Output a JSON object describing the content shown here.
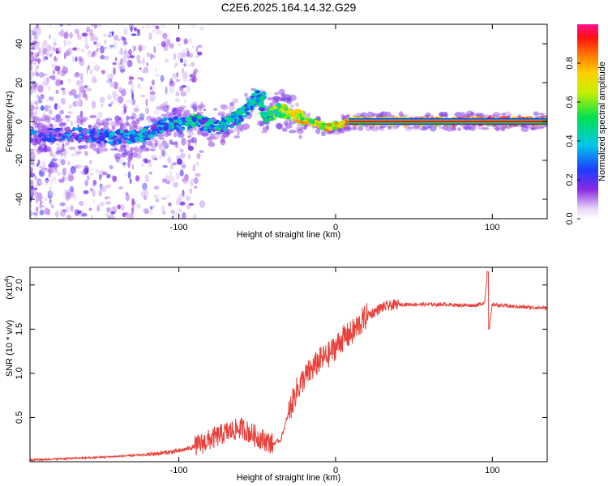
{
  "title": "C2E6.2025.164.14.32.G29",
  "chart_data": [
    {
      "type": "heatmap",
      "xlabel": "Height of straight line (km)",
      "ylabel": "Frequency (Hz)",
      "xlim": [
        -195,
        135
      ],
      "ylim": [
        -50,
        50
      ],
      "xticks": [
        -100,
        0,
        100
      ],
      "yticks": [
        -40,
        -20,
        0,
        20,
        40
      ],
      "colorbar": {
        "label": "Normalized spectral amplitude",
        "range": [
          0,
          1
        ],
        "ticks": [
          "0.0",
          "0.2",
          "0.4",
          "0.6",
          "0.8"
        ],
        "tick_values": [
          0.0,
          0.2,
          0.4,
          0.6,
          0.8
        ]
      },
      "ridge": [
        {
          "x": -190,
          "y": -7,
          "a": 0.35
        },
        {
          "x": -160,
          "y": -7,
          "a": 0.4
        },
        {
          "x": -140,
          "y": -8,
          "a": 0.45
        },
        {
          "x": -125,
          "y": -8,
          "a": 0.45
        },
        {
          "x": -110,
          "y": -2,
          "a": 0.5
        },
        {
          "x": -90,
          "y": 0,
          "a": 0.55
        },
        {
          "x": -75,
          "y": -3,
          "a": 0.45
        },
        {
          "x": -60,
          "y": 3,
          "a": 0.5
        },
        {
          "x": -50,
          "y": 13,
          "a": 0.45
        },
        {
          "x": -45,
          "y": 2,
          "a": 0.55
        },
        {
          "x": -35,
          "y": 6,
          "a": 0.75
        },
        {
          "x": -20,
          "y": 1,
          "a": 0.85
        },
        {
          "x": -5,
          "y": -3,
          "a": 0.85
        },
        {
          "x": 10,
          "y": 0,
          "a": 0.92
        },
        {
          "x": 135,
          "y": 0,
          "a": 0.95
        }
      ]
    },
    {
      "type": "line",
      "xlabel": "Height of straight line (km)",
      "ylabel": "SNR (10 * v/v)",
      "y_multiplier": "(x10",
      "y_multiplier_exp": "4",
      "xlim": [
        -195,
        135
      ],
      "ylim": [
        0,
        2.2
      ],
      "xticks": [
        -100,
        0,
        100
      ],
      "yticks": [
        "0.5",
        "1.0",
        "1.5",
        "2.0"
      ],
      "ytick_values": [
        0.5,
        1.0,
        1.5,
        2.0
      ],
      "color": "#e8403a",
      "series": [
        {
          "name": "SNR",
          "x": [
            -195,
            -150,
            -120,
            -100,
            -90,
            -80,
            -70,
            -60,
            -50,
            -40,
            -35,
            -30,
            -25,
            -20,
            -15,
            -10,
            -5,
            0,
            5,
            10,
            15,
            20,
            25,
            30,
            40,
            50,
            60,
            70,
            80,
            90,
            95,
            97,
            98,
            100,
            110,
            120,
            135
          ],
          "y": [
            0.02,
            0.05,
            0.08,
            0.12,
            0.17,
            0.25,
            0.33,
            0.38,
            0.28,
            0.2,
            0.25,
            0.55,
            0.8,
            0.95,
            1.05,
            1.15,
            1.2,
            1.3,
            1.4,
            1.45,
            1.55,
            1.65,
            1.7,
            1.75,
            1.78,
            1.78,
            1.78,
            1.78,
            1.77,
            1.77,
            1.8,
            2.15,
            1.5,
            1.78,
            1.76,
            1.75,
            1.74
          ]
        }
      ]
    }
  ]
}
